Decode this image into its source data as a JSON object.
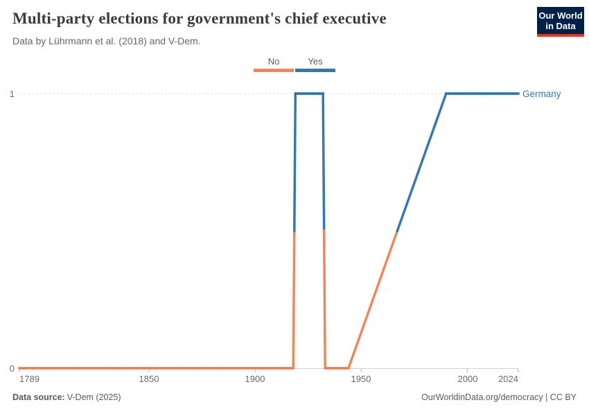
{
  "header": {
    "title": "Multi-party elections for government's chief executive",
    "subtitle": "Data by Lührmann et al. (2018) and V-Dem.",
    "logo": {
      "line1": "Our World",
      "line2": "in Data",
      "bg_color": "#002147",
      "accent_color": "#d93b2b"
    }
  },
  "legend": {
    "items": [
      {
        "label": "No",
        "color": "#F0875C"
      },
      {
        "label": "Yes",
        "color": "#3379AF"
      }
    ]
  },
  "chart_data": {
    "type": "line",
    "title": "Multi-party elections for government's chief executive",
    "xlabel": "",
    "ylabel": "",
    "xlim": [
      1789,
      2024
    ],
    "ylim": [
      0,
      1
    ],
    "grid": "horizontal dashed at y=1",
    "legend_position": "top-center",
    "x_ticks": [
      1789,
      1850,
      1900,
      1950,
      2000,
      2024
    ],
    "x_tick_labels": [
      "1789",
      "1850",
      "1900",
      "1950",
      "2000",
      "2024"
    ],
    "y_ticks": [
      0,
      1
    ],
    "y_tick_labels": [
      "0",
      "1"
    ],
    "value_labels": {
      "0": "No",
      "1": "Yes"
    },
    "value_colors": {
      "0": "#F0875C",
      "1": "#3379AF"
    },
    "point_colors": {
      "0": "#E0713F",
      "1": "#20669A"
    },
    "series": [
      {
        "name": "Germany",
        "points": [
          [
            1789,
            0
          ],
          [
            1918,
            0
          ],
          [
            1919,
            1
          ],
          [
            1932,
            1
          ],
          [
            1933,
            0
          ],
          [
            1944,
            0
          ],
          [
            1990,
            1
          ],
          [
            2024,
            1
          ]
        ]
      }
    ]
  },
  "footer": {
    "source_label": "Data source:",
    "source_value": "V-Dem (2025)",
    "attribution": "OurWorldinData.org/democracy | CC BY"
  }
}
